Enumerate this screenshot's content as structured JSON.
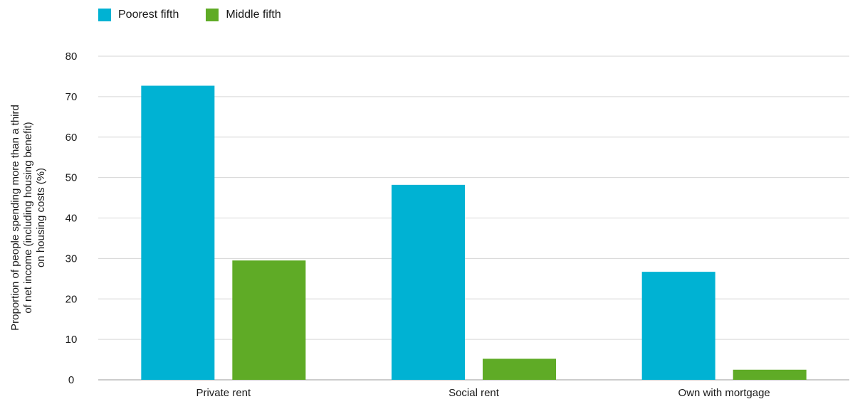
{
  "chart_data": {
    "type": "bar",
    "categories": [
      "Private rent",
      "Social rent",
      "Own with mortgage"
    ],
    "series": [
      {
        "name": "Poorest fifth",
        "color": "#00b2d3",
        "values": [
          72.7,
          48.2,
          26.7
        ]
      },
      {
        "name": "Middle fifth",
        "color": "#5fab26",
        "values": [
          29.5,
          5.2,
          2.5
        ]
      }
    ],
    "ylabel_lines": [
      "Proportion of people spending more than a third",
      "of net income (including housing benefit)",
      "on housing costs (%)"
    ],
    "ylim": [
      0,
      80
    ],
    "yticks": [
      0,
      10,
      20,
      30,
      40,
      50,
      60,
      70,
      80
    ],
    "grid": true,
    "legend_position": "top-left"
  }
}
